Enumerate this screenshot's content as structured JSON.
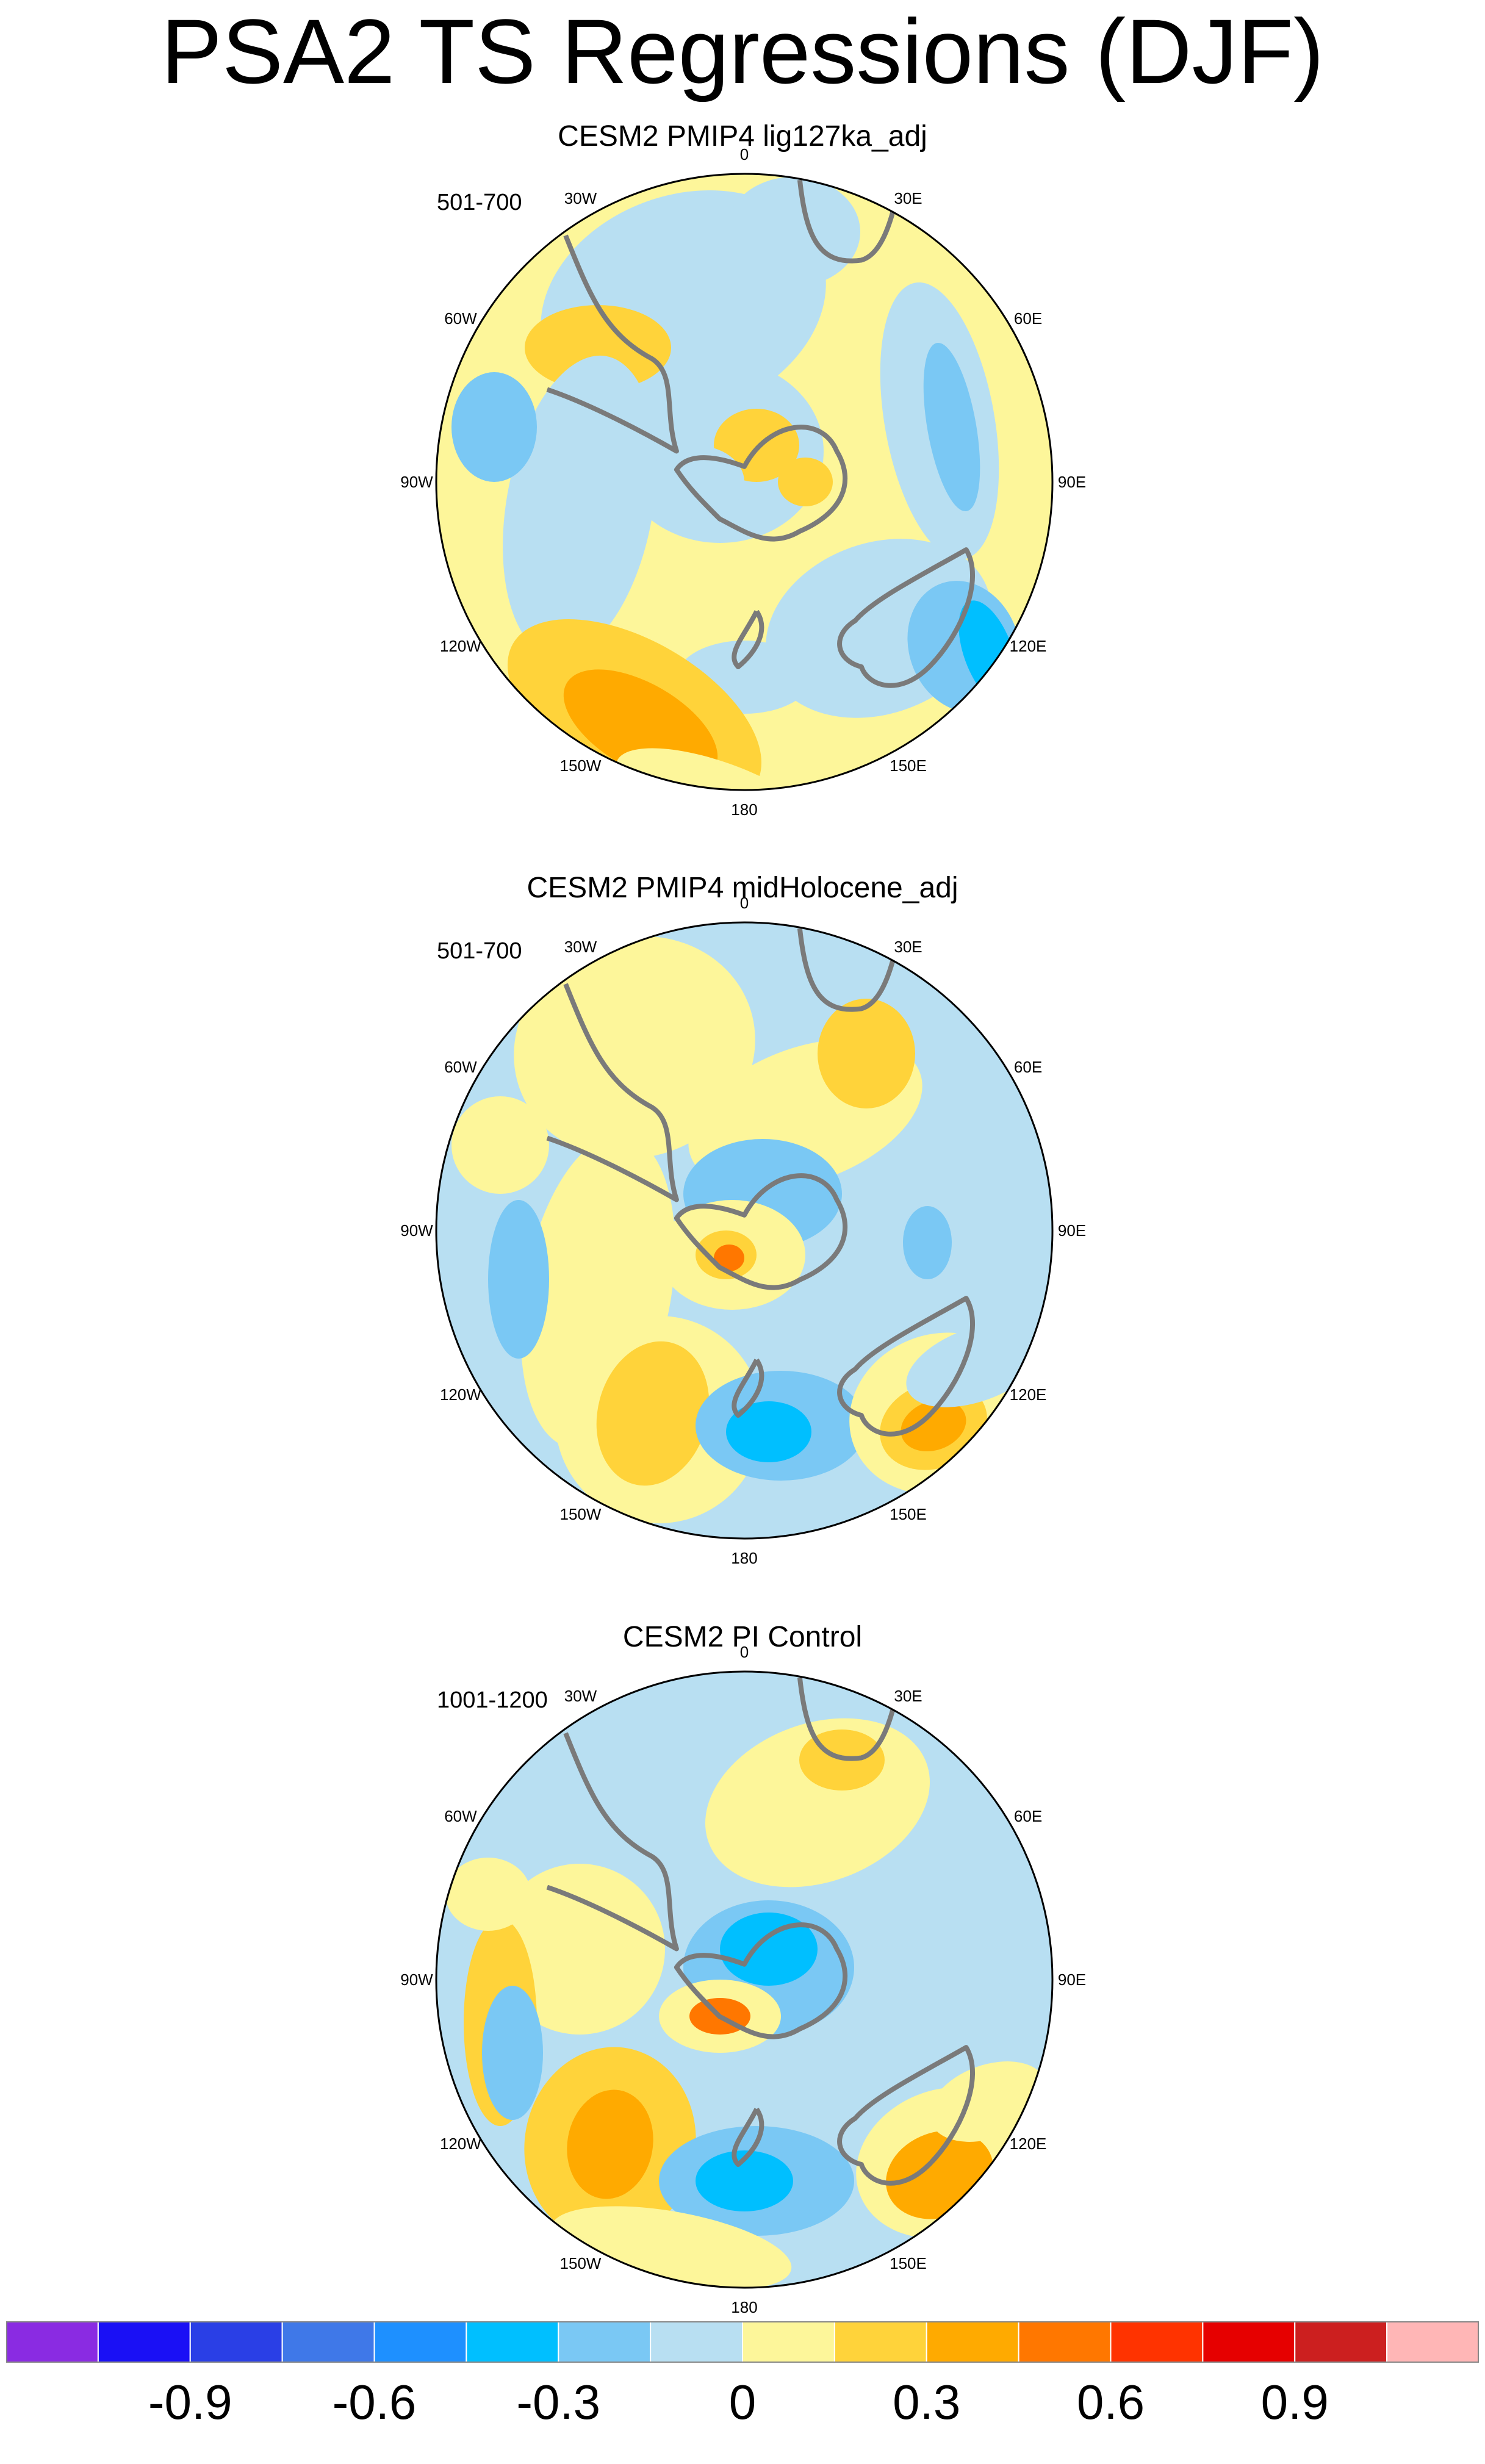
{
  "title": "PSA2 TS Regressions (DJF)",
  "colors": {
    "land_outline": "#7a7a7a",
    "boundary": "#000000",
    "levels": [
      "#8a2be2",
      "#1a10f5",
      "#2a3fe6",
      "#3f78e8",
      "#1e90ff",
      "#00bfff",
      "#7ac8f4",
      "#b8dff2",
      "#fdf69a",
      "#ffd33a",
      "#ffaa00",
      "#ff7700",
      "#ff3300",
      "#e60000",
      "#cc1f1f",
      "#ffb6b6"
    ]
  },
  "lon_labels": [
    "0",
    "30E",
    "60E",
    "90E",
    "120E",
    "150E",
    "180",
    "150W",
    "120W",
    "90W",
    "60W",
    "30W"
  ],
  "panels": [
    {
      "title": "CESM2 PMIP4 lig127ka_adj",
      "years": "501-700"
    },
    {
      "title": "CESM2 PMIP4 midHolocene_adj",
      "years": "501-700"
    },
    {
      "title": "CESM2 PI Control",
      "years": "1001-1200"
    }
  ],
  "colorbar": {
    "tick_labels": [
      "-0.9",
      "-0.6",
      "-0.3",
      "0",
      "0.3",
      "0.6",
      "0.9"
    ]
  }
}
